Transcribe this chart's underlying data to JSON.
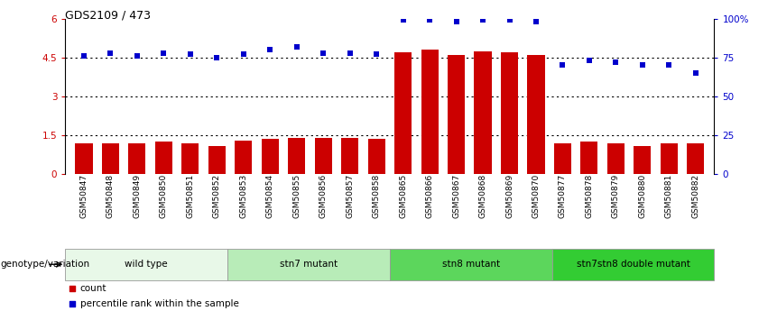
{
  "title": "GDS2109 / 473",
  "samples": [
    "GSM50847",
    "GSM50848",
    "GSM50849",
    "GSM50850",
    "GSM50851",
    "GSM50852",
    "GSM50853",
    "GSM50854",
    "GSM50855",
    "GSM50856",
    "GSM50857",
    "GSM50858",
    "GSM50865",
    "GSM50866",
    "GSM50867",
    "GSM50868",
    "GSM50869",
    "GSM50870",
    "GSM50877",
    "GSM50878",
    "GSM50879",
    "GSM50880",
    "GSM50881",
    "GSM50882"
  ],
  "counts": [
    1.2,
    1.2,
    1.2,
    1.25,
    1.2,
    1.1,
    1.3,
    1.35,
    1.4,
    1.4,
    1.4,
    1.35,
    4.7,
    4.8,
    4.6,
    4.75,
    4.7,
    4.6,
    1.2,
    1.25,
    1.2,
    1.1,
    1.2,
    1.2
  ],
  "percentiles": [
    76,
    78,
    76,
    78,
    77,
    75,
    77,
    80,
    82,
    78,
    78,
    77,
    99,
    99,
    98,
    99,
    99,
    98,
    70,
    73,
    72,
    70,
    70,
    65
  ],
  "groups": [
    {
      "label": "wild type",
      "start": 0,
      "end": 6,
      "color": "#e8f8e8"
    },
    {
      "label": "stn7 mutant",
      "start": 6,
      "end": 12,
      "color": "#b8ecb8"
    },
    {
      "label": "stn8 mutant",
      "start": 12,
      "end": 18,
      "color": "#5cd65c"
    },
    {
      "label": "stn7stn8 double mutant",
      "start": 18,
      "end": 24,
      "color": "#33cc33"
    }
  ],
  "bar_color": "#cc0000",
  "dot_color": "#0000cc",
  "left_yticks": [
    0,
    1.5,
    3,
    4.5,
    6
  ],
  "left_ylabels": [
    "0",
    "1.5",
    "3",
    "4.5",
    "6"
  ],
  "right_yticks": [
    0,
    25,
    50,
    75,
    100
  ],
  "right_ylabels": [
    "0",
    "25",
    "50",
    "75",
    "100%"
  ],
  "ylim_left": [
    0,
    6
  ],
  "ylim_right": [
    0,
    100
  ],
  "genotype_label": "genotype/variation",
  "legend_count_label": "count",
  "legend_percentile_label": "percentile rank within the sample",
  "bg_color": "#ffffff",
  "grid_lines": [
    1.5,
    3.0,
    4.5
  ],
  "dotted_color": "#555555"
}
